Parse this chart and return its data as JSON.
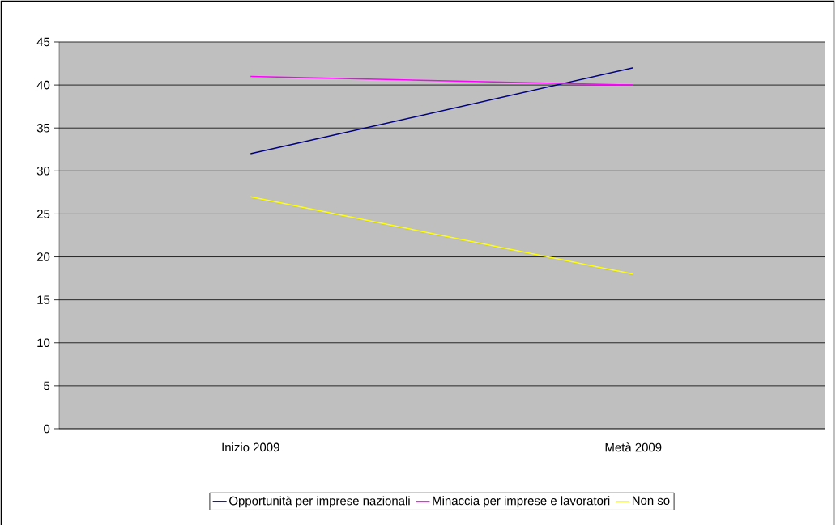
{
  "chart_data": {
    "type": "line",
    "categories": [
      "Inizio 2009",
      "Metà 2009"
    ],
    "series": [
      {
        "name": "Opportunità per imprese nazionali",
        "color": "#000080",
        "values": [
          32,
          42
        ]
      },
      {
        "name": "Minaccia per imprese e lavoratori",
        "color": "#ff00ff",
        "values": [
          41,
          40
        ]
      },
      {
        "name": "Non so",
        "color": "#ffff00",
        "values": [
          27,
          18
        ]
      }
    ],
    "ylim": [
      0,
      45
    ],
    "yticks": [
      0,
      5,
      10,
      15,
      20,
      25,
      30,
      35,
      40,
      45
    ],
    "grid": "y",
    "legend": "bottom",
    "marker": "none",
    "line_style": "solid"
  }
}
